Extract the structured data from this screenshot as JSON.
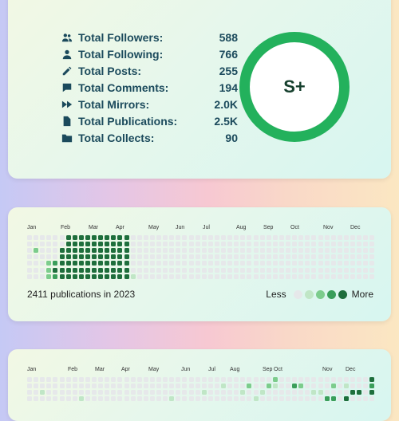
{
  "stats": [
    {
      "icon": "followers-icon",
      "label": "Total Followers:",
      "value": "588"
    },
    {
      "icon": "following-icon",
      "label": "Total Following:",
      "value": "766"
    },
    {
      "icon": "pencil-icon",
      "label": "Total Posts:",
      "value": "255"
    },
    {
      "icon": "comment-icon",
      "label": "Total Comments:",
      "value": "194"
    },
    {
      "icon": "mirror-icon",
      "label": "Total Mirrors:",
      "value": "2.0K"
    },
    {
      "icon": "document-icon",
      "label": "Total Publications:",
      "value": "2.5K"
    },
    {
      "icon": "folder-icon",
      "label": "Total Collects:",
      "value": "90"
    }
  ],
  "grade": "S+",
  "colors": {
    "level0": "#e6e8ea",
    "level1": "#c0e6c6",
    "level2": "#7ccc8c",
    "level3": "#3a9e5a",
    "level4": "#1e6e3c",
    "ring": "#23b15c",
    "text": "#1b4a5c"
  },
  "calendar1": {
    "months": [
      "Jan",
      "Feb",
      "Mar",
      "Apr",
      "May",
      "Jun",
      "Jul",
      "Aug",
      "Sep",
      "Oct",
      "Nov",
      "Dec"
    ],
    "summary": "2411 publications in 2023",
    "legend_less": "Less",
    "legend_more": "More"
  },
  "calendar2": {
    "months": [
      "Jan",
      "Feb",
      "Mar",
      "Apr",
      "May",
      "Jun",
      "Jul",
      "Aug",
      "Sep",
      "Oct",
      "Nov",
      "Dec"
    ]
  }
}
